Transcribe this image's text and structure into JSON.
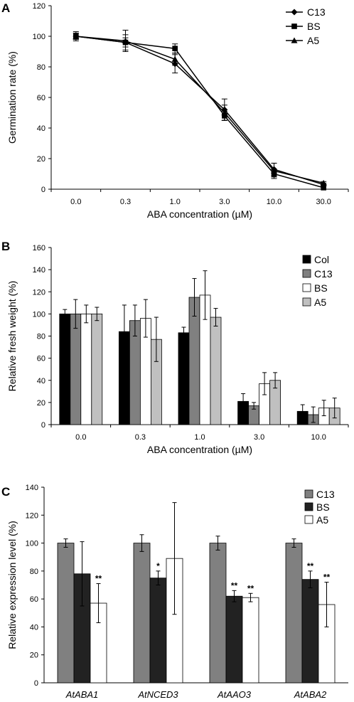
{
  "chart_data": [
    {
      "panel": "A",
      "type": "line",
      "xlabel": "ABA concentration (µM)",
      "ylabel": "Germination rate (%)",
      "categories": [
        "0.0",
        "0.3",
        "1.0",
        "3.0",
        "10.0",
        "30.0"
      ],
      "ylim": [
        0,
        120
      ],
      "yticks": [
        0,
        20,
        40,
        60,
        80,
        100,
        120
      ],
      "legend_position": "top-right",
      "series": [
        {
          "name": "C13",
          "marker": "diamond",
          "values": [
            100,
            96,
            82,
            52,
            13,
            3
          ],
          "errors": [
            2,
            3,
            6,
            7,
            4,
            1
          ]
        },
        {
          "name": "BS",
          "marker": "square",
          "values": [
            100,
            96,
            92,
            48,
            10,
            1
          ],
          "errors": [
            3,
            5,
            3,
            3,
            2,
            1
          ]
        },
        {
          "name": "A5",
          "marker": "triangle",
          "values": [
            100,
            97,
            85,
            50,
            12,
            4
          ],
          "errors": [
            2,
            7,
            4,
            5,
            5,
            1
          ]
        }
      ]
    },
    {
      "panel": "B",
      "type": "bar",
      "xlabel": "ABA concentration (µM)",
      "ylabel": "Relative fresh weight (%)",
      "categories": [
        "0.0",
        "0.3",
        "1.0",
        "3.0",
        "10.0"
      ],
      "ylim": [
        0,
        160
      ],
      "yticks": [
        0,
        20,
        40,
        60,
        80,
        100,
        120,
        140,
        160
      ],
      "legend_position": "top-right",
      "series": [
        {
          "name": "Col",
          "color": "#000000",
          "values": [
            100,
            84,
            83,
            21,
            12
          ],
          "errors": [
            4,
            24,
            5,
            7,
            6
          ]
        },
        {
          "name": "C13",
          "color": "#808080",
          "values": [
            100,
            94,
            115,
            17,
            9
          ],
          "errors": [
            13,
            14,
            17,
            3,
            7
          ]
        },
        {
          "name": "BS",
          "color": "#ffffff",
          "values": [
            100,
            96,
            117,
            37,
            15
          ],
          "errors": [
            8,
            17,
            22,
            10,
            7
          ]
        },
        {
          "name": "A5",
          "color": "#c0c0c0",
          "values": [
            100,
            77,
            97,
            40,
            15
          ],
          "errors": [
            6,
            20,
            8,
            7,
            9
          ]
        }
      ]
    },
    {
      "panel": "C",
      "type": "bar",
      "xlabel": "",
      "ylabel": "Relative expression level (%)",
      "categories": [
        "AtABA1",
        "AtNCED3",
        "AtAAO3",
        "AtABA2"
      ],
      "ylim": [
        0,
        140
      ],
      "yticks": [
        0,
        20,
        40,
        60,
        80,
        100,
        120,
        140
      ],
      "legend_position": "top-right",
      "series": [
        {
          "name": "C13",
          "color": "#808080",
          "values": [
            100,
            100,
            100,
            100
          ],
          "errors": [
            3,
            6,
            5,
            3
          ],
          "sig": [
            "",
            "",
            "",
            ""
          ]
        },
        {
          "name": "BS",
          "color": "#222222",
          "values": [
            78,
            75,
            62,
            74
          ],
          "errors": [
            23,
            5,
            4,
            6
          ],
          "sig": [
            "",
            "*",
            "**",
            "**"
          ]
        },
        {
          "name": "A5",
          "color": "#ffffff",
          "values": [
            57,
            89,
            61,
            56
          ],
          "errors": [
            14,
            40,
            3,
            16
          ],
          "sig": [
            "**",
            "",
            "**",
            "**"
          ]
        }
      ]
    }
  ]
}
